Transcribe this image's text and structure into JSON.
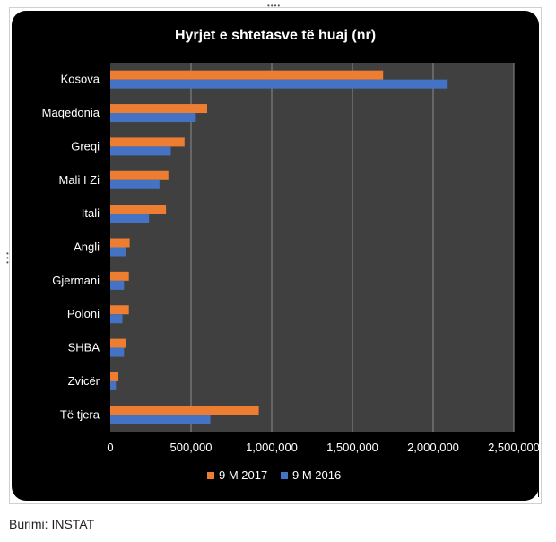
{
  "chart_data": {
    "type": "bar",
    "orientation": "horizontal",
    "title": "Hyrjet e shtetasve të huaj (nr)",
    "categories": [
      "Kosova",
      "Maqedonia",
      "Greqi",
      "Mali I Zi",
      "Itali",
      "Angli",
      "Gjermani",
      "Poloni",
      "SHBA",
      "Zvicër",
      "Të tjera"
    ],
    "series": [
      {
        "name": "9 M 2017",
        "color": "#ED7D31",
        "values": [
          1690000,
          600000,
          460000,
          360000,
          345000,
          120000,
          115000,
          115000,
          95000,
          50000,
          920000
        ]
      },
      {
        "name": "9 M 2016",
        "color": "#4472C4",
        "values": [
          2090000,
          530000,
          375000,
          305000,
          240000,
          95000,
          85000,
          75000,
          85000,
          35000,
          620000
        ]
      }
    ],
    "xlim": [
      0,
      2500000
    ],
    "xticks": [
      0,
      500000,
      1000000,
      1500000,
      2000000,
      2500000
    ],
    "xtick_labels": [
      "0",
      "500,000",
      "1,000,000",
      "1,500,000",
      "2,000,000",
      "2,500,000"
    ],
    "grid": true,
    "legend_position": "bottom",
    "background_color": "#000000",
    "plot_area_color": "#404040"
  },
  "source": "Burimi: INSTAT"
}
